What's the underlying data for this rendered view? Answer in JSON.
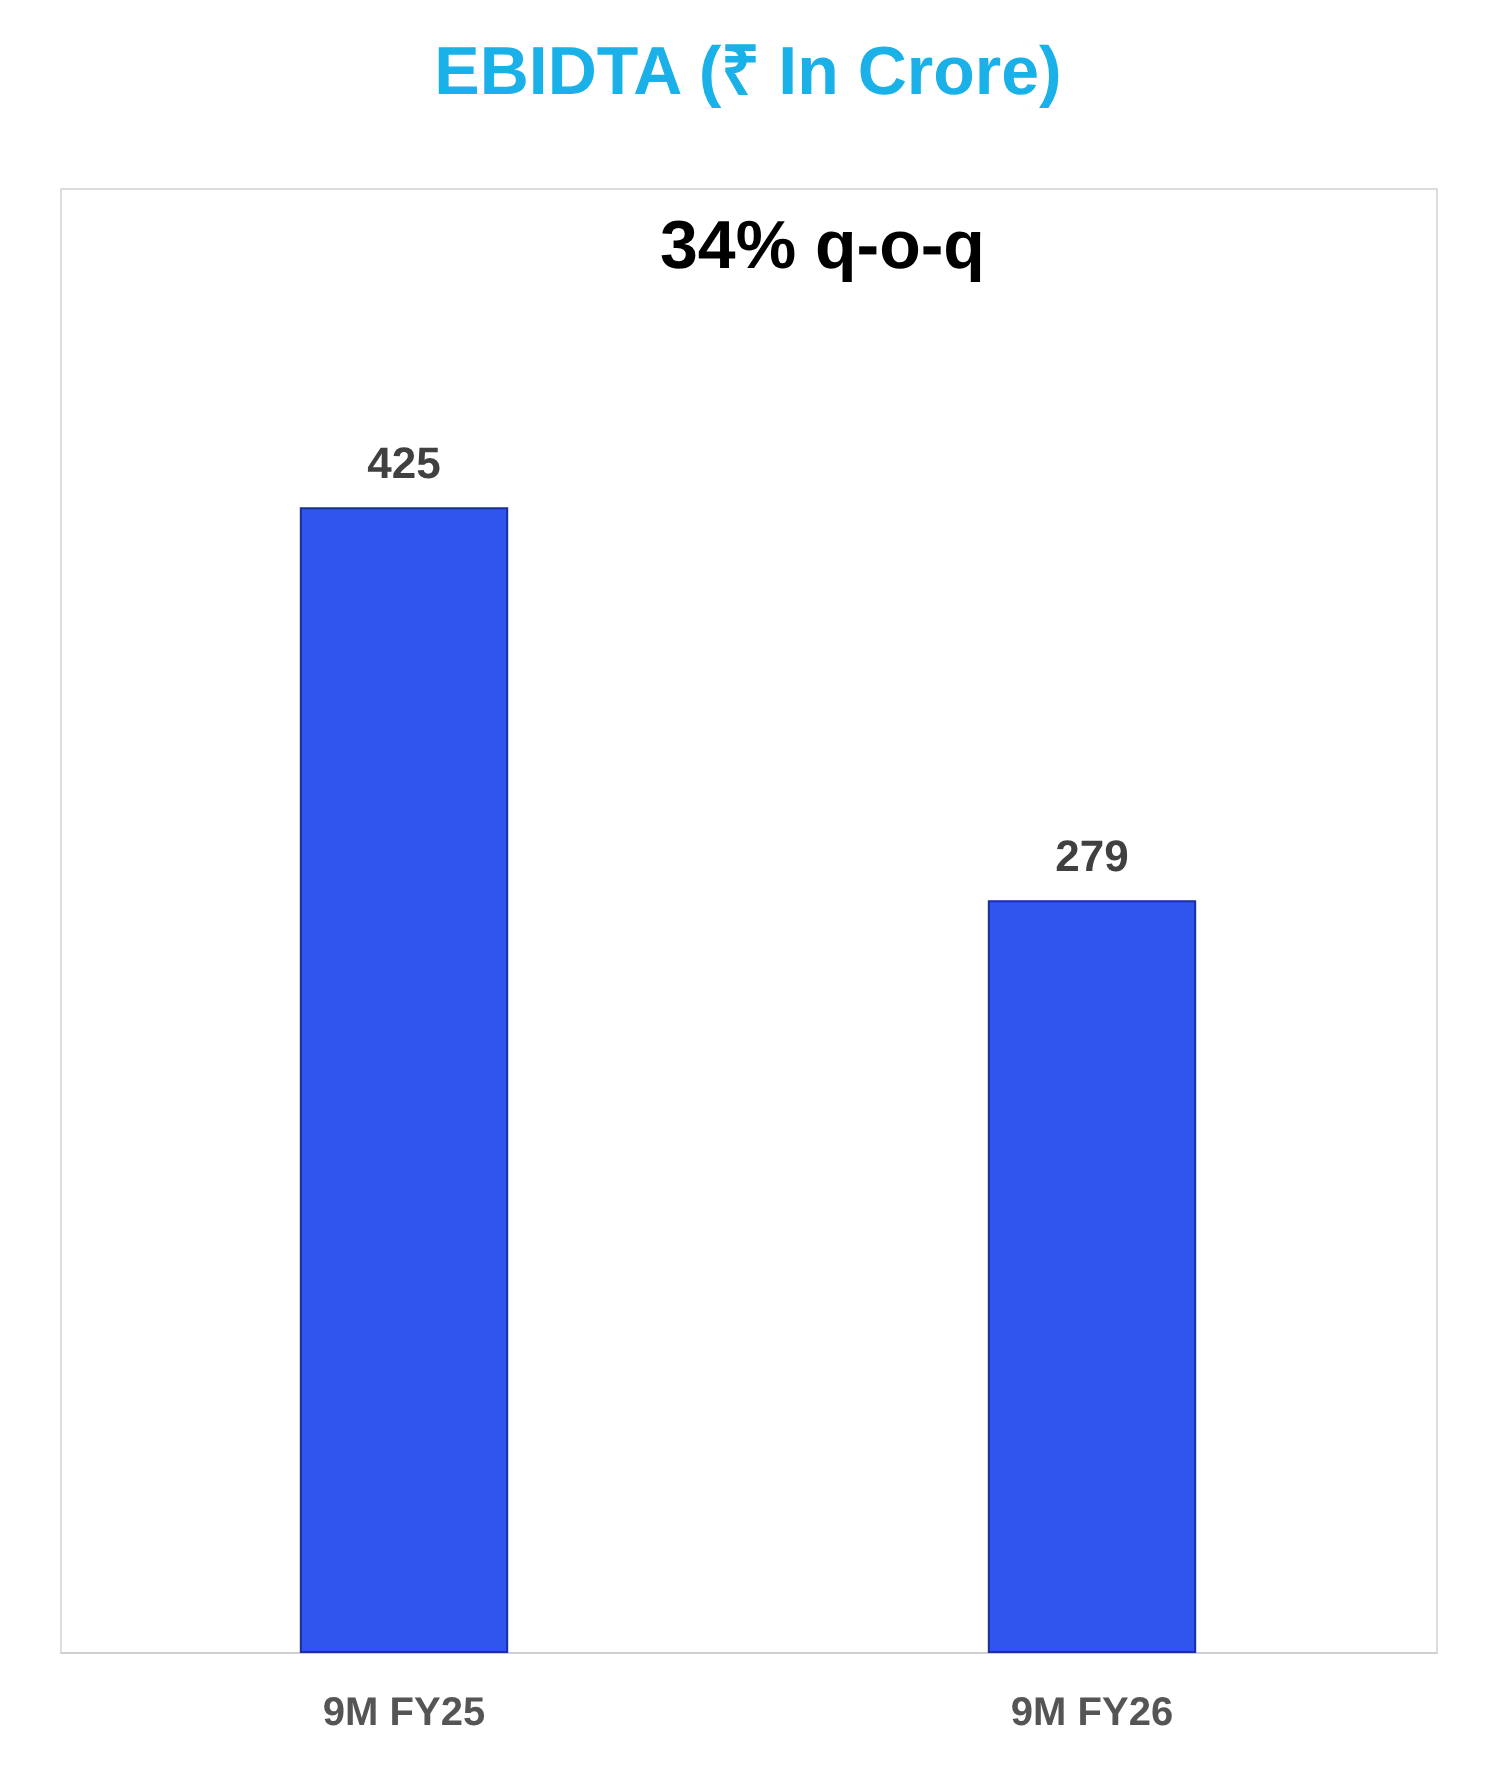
{
  "chart_data": {
    "type": "bar",
    "title": "EBIDTA (₹ In Crore)",
    "categories": [
      "9M FY25",
      "9M FY26"
    ],
    "values": [
      425,
      279
    ],
    "color": "#2f55ee",
    "data_labels": true,
    "grid": false,
    "annotations": [
      "34% q-o-q"
    ]
  }
}
